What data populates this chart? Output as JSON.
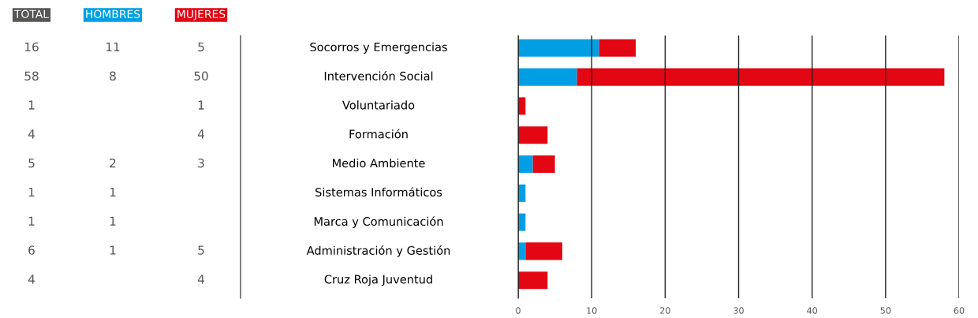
{
  "chart_data": [
    {
      "type": "heatmap",
      "categories": [
        "TOTAL",
        "HOMBRES",
        "MUJERES"
      ],
      "colors": [
        "#575756",
        "#009fe3",
        "#e30613"
      ],
      "data_labels": true,
      "y_categories": [
        "Socorros y Emergencias",
        "Intervención Social",
        "Voluntariado",
        "Formación",
        "Medio Ambiente",
        "Sistemas Informáticos",
        "Marca y Comunicación",
        "Administración y Gestión",
        "Cruz Roja Juventud"
      ],
      "cells": [
        [
          16,
          11,
          5
        ],
        [
          58,
          8,
          50
        ],
        [
          1,
          null,
          1
        ],
        [
          4,
          null,
          4
        ],
        [
          5,
          2,
          3
        ],
        [
          1,
          1,
          null
        ],
        [
          1,
          1,
          null
        ],
        [
          6,
          1,
          5
        ],
        [
          4,
          null,
          4
        ]
      ]
    },
    {
      "type": "bar",
      "orientation": "horizontal",
      "stacked": true,
      "categories": [
        null,
        null,
        null,
        null,
        null,
        null,
        null,
        null,
        null
      ],
      "series": [
        {
          "color": "#009fe3",
          "values": [
            11,
            8,
            null,
            null,
            2,
            1,
            1,
            1,
            null
          ]
        },
        {
          "color": "#e30613",
          "values": [
            5,
            50,
            1,
            4,
            3,
            null,
            null,
            5,
            4
          ]
        }
      ],
      "xlim": [
        0,
        60
      ],
      "xticks": [
        0,
        10,
        20,
        30,
        40,
        50,
        60
      ],
      "grid": "x"
    }
  ]
}
